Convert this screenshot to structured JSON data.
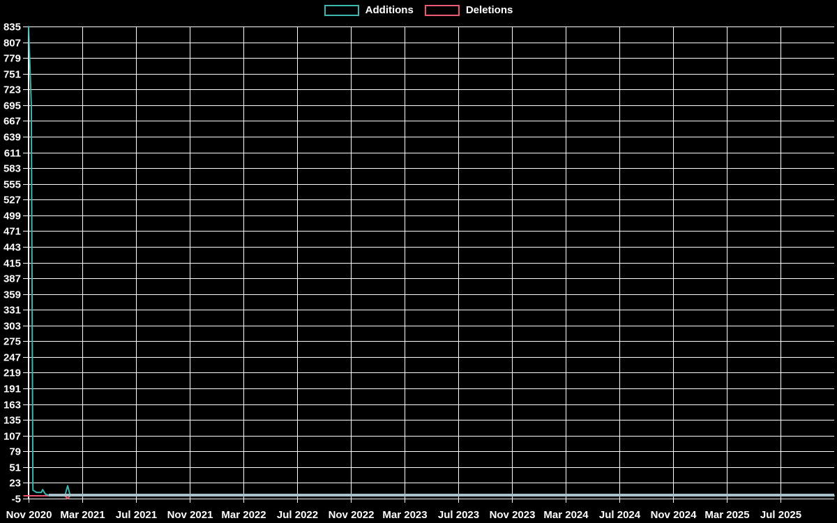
{
  "page": {
    "background_color": "#000000",
    "text_color": "#ffffff"
  },
  "legend": {
    "position": "top-center",
    "items": [
      {
        "label": "Additions",
        "color": "#3db6ae"
      },
      {
        "label": "Deletions",
        "color": "#ef5670"
      }
    ]
  },
  "chart_data": {
    "type": "line",
    "title": "",
    "x_axis": {
      "tick_labels": [
        "Nov 2020",
        "Mar 2021",
        "Jul 2021",
        "Nov 2021",
        "Mar 2022",
        "Jul 2022",
        "Nov 2022",
        "Mar 2023",
        "Jul 2023",
        "Nov 2023",
        "Mar 2024",
        "Jul 2024",
        "Nov 2024",
        "Mar 2025",
        "Jul 2025"
      ],
      "months_per_tick": 4,
      "total_months_shown": 60
    },
    "y_axis": {
      "min": -5,
      "max": 835,
      "step": 28,
      "tick_labels": [
        835,
        807,
        779,
        751,
        723,
        695,
        667,
        639,
        611,
        583,
        555,
        527,
        499,
        471,
        443,
        415,
        387,
        359,
        331,
        303,
        275,
        247,
        219,
        191,
        163,
        135,
        107,
        79,
        51,
        23,
        -5
      ]
    },
    "grid": {
      "show": true,
      "color": "#ffffff"
    },
    "series": [
      {
        "name": "Additions",
        "color": "#3db6ae",
        "points_months_value": [
          [
            0,
            835
          ],
          [
            0.2,
            695
          ],
          [
            0.32,
            10
          ],
          [
            0.6,
            6
          ],
          [
            0.95,
            6
          ],
          [
            1.05,
            11
          ],
          [
            1.25,
            3
          ],
          [
            1.6,
            0
          ],
          [
            2.7,
            0
          ],
          [
            2.91,
            18
          ],
          [
            3.1,
            0
          ],
          [
            60,
            0
          ]
        ]
      },
      {
        "name": "Deletions",
        "color": "#ef5670",
        "points_months_value": [
          [
            -0.35,
            0
          ],
          [
            2.7,
            0
          ],
          [
            2.91,
            -5
          ],
          [
            3.1,
            0
          ],
          [
            60,
            0
          ]
        ]
      }
    ],
    "overlap_band": {
      "color": "#a8c0ca",
      "from_month": 1.5,
      "to_month": 60,
      "value": 1.2
    }
  }
}
